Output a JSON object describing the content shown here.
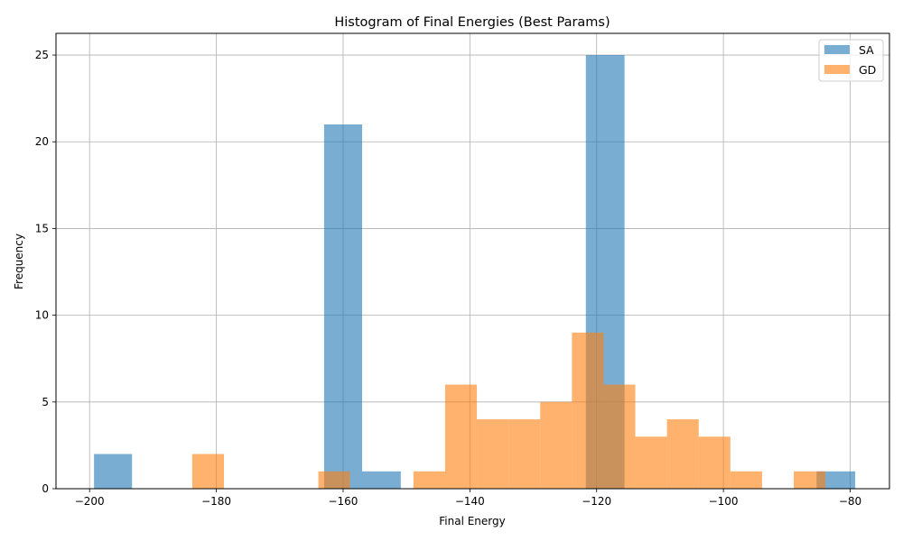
{
  "chart_data": {
    "type": "bar",
    "title": "Histogram of Final Energies (Best Params)",
    "xlabel": "Final Energy",
    "ylabel": "Frequency",
    "xlim": [
      -205.3,
      -73.8
    ],
    "ylim": [
      0,
      26.25
    ],
    "xticks": [
      -200,
      -180,
      -160,
      -140,
      -120,
      -100,
      -80
    ],
    "yticks": [
      0,
      5,
      10,
      15,
      20,
      25
    ],
    "xtick_labels": [
      "−200",
      "−180",
      "−160",
      "−140",
      "−120",
      "−100",
      "−80"
    ],
    "ytick_labels": [
      "0",
      "5",
      "10",
      "15",
      "20",
      "25"
    ],
    "grid": true,
    "legend_position": "top-right",
    "series": [
      {
        "name": "SA",
        "color": "#1f77b4",
        "opacity": 0.6,
        "bins": [
          {
            "x0": -199.3,
            "x1": -193.3,
            "value": 2
          },
          {
            "x0": -163.0,
            "x1": -157.0,
            "value": 21
          },
          {
            "x0": -157.0,
            "x1": -150.9,
            "value": 1
          },
          {
            "x0": -121.7,
            "x1": -115.6,
            "value": 25
          },
          {
            "x0": -85.3,
            "x1": -79.2,
            "value": 1
          }
        ]
      },
      {
        "name": "GD",
        "color": "#ff7f0e",
        "opacity": 0.6,
        "bins": [
          {
            "x0": -183.8,
            "x1": -178.8,
            "value": 2
          },
          {
            "x0": -163.9,
            "x1": -158.9,
            "value": 1
          },
          {
            "x0": -148.9,
            "x1": -143.9,
            "value": 1
          },
          {
            "x0": -143.9,
            "x1": -138.9,
            "value": 6
          },
          {
            "x0": -138.9,
            "x1": -133.9,
            "value": 4
          },
          {
            "x0": -133.9,
            "x1": -128.9,
            "value": 4
          },
          {
            "x0": -128.9,
            "x1": -123.9,
            "value": 5
          },
          {
            "x0": -123.9,
            "x1": -118.9,
            "value": 9
          },
          {
            "x0": -118.9,
            "x1": -113.9,
            "value": 6
          },
          {
            "x0": -113.9,
            "x1": -108.9,
            "value": 3
          },
          {
            "x0": -108.9,
            "x1": -103.9,
            "value": 4
          },
          {
            "x0": -103.9,
            "x1": -98.9,
            "value": 3
          },
          {
            "x0": -98.9,
            "x1": -93.9,
            "value": 1
          },
          {
            "x0": -88.9,
            "x1": -83.9,
            "value": 1
          }
        ]
      }
    ]
  }
}
